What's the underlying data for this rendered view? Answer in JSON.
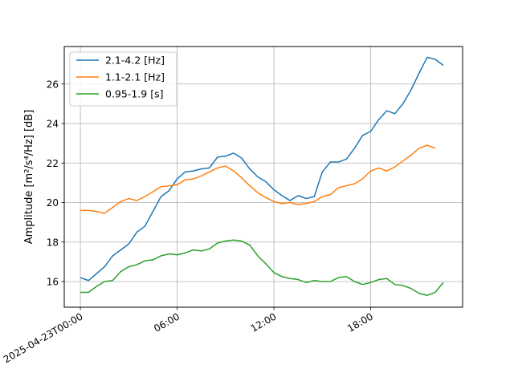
{
  "chart_data": {
    "type": "line",
    "title": "",
    "xlabel": "",
    "ylabel": "Amplitude [m²/s⁴/Hz] [dB]",
    "x_start": "2025-04-23T00:00",
    "x_step_minutes": 30,
    "xlim_hours": [
      -1.0,
      23.7
    ],
    "ylim": [
      14.7,
      27.9
    ],
    "x_ticks": [
      {
        "hour": 0,
        "label": "2025-04-23T00:00"
      },
      {
        "hour": 6,
        "label": "06:00"
      },
      {
        "hour": 12,
        "label": "12:00"
      },
      {
        "hour": 18,
        "label": "18:00"
      }
    ],
    "y_ticks": [
      16,
      18,
      20,
      22,
      24,
      26
    ],
    "grid": true,
    "legend_position": "upper-left",
    "series": [
      {
        "name": "2.1-4.2 [Hz]",
        "color": "#1f77b4",
        "values": [
          16.2,
          16.05,
          16.4,
          16.75,
          17.3,
          17.6,
          17.9,
          18.5,
          18.8,
          19.55,
          20.3,
          20.6,
          21.2,
          21.55,
          21.6,
          21.7,
          21.75,
          22.3,
          22.35,
          22.5,
          22.25,
          21.7,
          21.3,
          21.05,
          20.65,
          20.35,
          20.1,
          20.35,
          20.2,
          20.3,
          21.55,
          22.05,
          22.05,
          22.2,
          22.75,
          23.4,
          23.6,
          24.2,
          24.65,
          24.5,
          25.0,
          25.7,
          26.55,
          27.35,
          27.25,
          26.95
        ]
      },
      {
        "name": "1.1-2.1 [Hz]",
        "color": "#ff7f0e",
        "values": [
          19.6,
          19.6,
          19.55,
          19.45,
          19.75,
          20.05,
          20.2,
          20.1,
          20.3,
          20.55,
          20.8,
          20.85,
          20.9,
          21.15,
          21.2,
          21.35,
          21.55,
          21.75,
          21.85,
          21.6,
          21.25,
          20.85,
          20.5,
          20.25,
          20.05,
          19.95,
          20.0,
          19.9,
          19.95,
          20.05,
          20.3,
          20.4,
          20.75,
          20.85,
          20.95,
          21.2,
          21.6,
          21.75,
          21.6,
          21.8,
          22.1,
          22.4,
          22.75,
          22.9,
          22.75
        ]
      },
      {
        "name": "0.95-1.9 [s]",
        "color": "#2ca02c",
        "values": [
          15.45,
          15.45,
          15.75,
          16.0,
          16.05,
          16.5,
          16.75,
          16.85,
          17.05,
          17.1,
          17.3,
          17.4,
          17.35,
          17.45,
          17.6,
          17.55,
          17.65,
          17.95,
          18.05,
          18.1,
          18.05,
          17.85,
          17.3,
          16.9,
          16.45,
          16.25,
          16.15,
          16.1,
          15.95,
          16.05,
          16.0,
          16.0,
          16.2,
          16.25,
          16.0,
          15.85,
          15.95,
          16.1,
          16.15,
          15.85,
          15.8,
          15.65,
          15.4,
          15.3,
          15.45,
          15.95
        ]
      }
    ]
  }
}
